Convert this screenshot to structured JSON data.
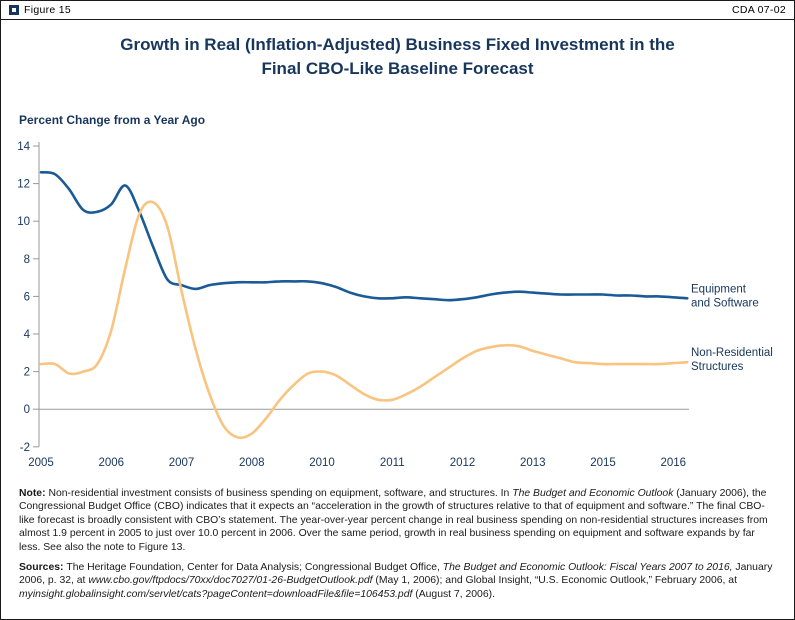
{
  "header": {
    "figure_label": "Figure 15",
    "doc_id": "CDA 07-02"
  },
  "title": {
    "line1": "Growth in Real (Inflation-Adjusted) Business Fixed Investment in the",
    "line2": "Final CBO-Like Baseline Forecast"
  },
  "colors": {
    "navy": "#17365D",
    "axis": "#999999",
    "equipment_line": "#1a5a96",
    "structures_line": "#f9c380"
  },
  "chart_data": {
    "type": "line",
    "title": "Growth in Real (Inflation-Adjusted) Business Fixed Investment in the Final CBO-Like Baseline Forecast",
    "xlabel": "",
    "ylabel": "Percent Change from a Year Ago",
    "ylim": [
      -2,
      14
    ],
    "yticks": [
      14,
      12,
      10,
      8,
      6,
      4,
      2,
      0,
      -2
    ],
    "grid": false,
    "legend_position": "right of line ends",
    "x": [
      2005.0,
      2005.25,
      2005.5,
      2005.75,
      2006.0,
      2006.25,
      2006.5,
      2006.75,
      2007.0,
      2007.25,
      2007.5,
      2007.75,
      2008.0,
      2008.25,
      2008.5,
      2008.75,
      2009.0,
      2009.25,
      2009.5,
      2009.75,
      2010.0,
      2010.25,
      2010.5,
      2010.75,
      2011.0,
      2011.25,
      2011.5,
      2011.75,
      2012.0,
      2012.25,
      2012.5,
      2012.75,
      2013.0,
      2013.25,
      2013.5,
      2013.75,
      2014.0,
      2014.25,
      2014.5,
      2014.75,
      2015.0,
      2015.25,
      2015.5,
      2015.75,
      2016.0,
      2016.25,
      2016.5
    ],
    "xtick_indices": [
      0,
      5,
      10,
      15,
      20,
      25,
      30,
      35,
      40,
      45
    ],
    "xtick_labels": [
      "2005",
      "2006",
      "2007",
      "2008",
      "2010",
      "2011",
      "2012",
      "2013",
      "2015",
      "2016"
    ],
    "series": [
      {
        "name": "Equipment and Software",
        "label_lines": [
          "Equipment",
          "and Software"
        ],
        "color": "#1a5a96",
        "values": [
          12.6,
          12.5,
          11.7,
          10.6,
          10.5,
          10.9,
          11.9,
          10.5,
          8.6,
          6.9,
          6.6,
          6.4,
          6.6,
          6.7,
          6.75,
          6.75,
          6.75,
          6.8,
          6.8,
          6.8,
          6.7,
          6.5,
          6.2,
          6.0,
          5.9,
          5.9,
          5.95,
          5.9,
          5.85,
          5.8,
          5.85,
          5.95,
          6.1,
          6.2,
          6.25,
          6.2,
          6.15,
          6.1,
          6.1,
          6.1,
          6.1,
          6.05,
          6.05,
          6.0,
          6.0,
          5.95,
          5.9
        ]
      },
      {
        "name": "Non-Residential Structures",
        "label_lines": [
          "Non-Residential",
          "Structures"
        ],
        "color": "#f9c380",
        "values": [
          2.4,
          2.4,
          1.9,
          2.0,
          2.4,
          4.2,
          7.5,
          10.4,
          11.0,
          9.7,
          6.3,
          3.2,
          0.8,
          -0.9,
          -1.5,
          -1.3,
          -0.5,
          0.5,
          1.3,
          1.9,
          2.0,
          1.8,
          1.3,
          0.8,
          0.5,
          0.5,
          0.8,
          1.2,
          1.7,
          2.2,
          2.7,
          3.1,
          3.3,
          3.4,
          3.35,
          3.1,
          2.9,
          2.7,
          2.5,
          2.45,
          2.4,
          2.4,
          2.4,
          2.4,
          2.4,
          2.45,
          2.5
        ]
      }
    ]
  },
  "note": {
    "segments": [
      {
        "style": "bold",
        "text": "Note: "
      },
      {
        "style": "normal",
        "text": "Non-residential investment consists of business spending on equipment, software, and structures. In "
      },
      {
        "style": "italic",
        "text": "The Budget and Economic Outlook"
      },
      {
        "style": "normal",
        "text": " (January 2006), the Congressional Budget Office (CBO) indicates that it expects an “acceleration in the growth of structures relative to that of equipment and software.” The final CBO-like forecast is broadly consistent with CBO’s statement. The year-over-year percent change in real business spending on non-residential structures increases from almost 1.9 percent in 2005 to just over 10.0 percent in 2006. Over the same period, growth in real business spending on equipment and software expands by far less. See also the note to Figure 13."
      }
    ]
  },
  "sources": {
    "segments": [
      {
        "style": "bold",
        "text": "Sources: "
      },
      {
        "style": "normal",
        "text": "The Heritage Foundation, Center for Data Analysis; Congressional Budget Office, "
      },
      {
        "style": "italic",
        "text": "The Budget and Economic Outlook: Fiscal Years 2007 to 2016,"
      },
      {
        "style": "normal",
        "text": " January 2006, p. 32, at "
      },
      {
        "style": "italic",
        "text": "www.cbo.gov/ftpdocs/70xx/doc7027/01-26-BudgetOutlook.pdf"
      },
      {
        "style": "normal",
        "text": " (May 1, 2006); and Global Insight, “U.S. Economic Outlook,” February 2006, at "
      },
      {
        "style": "italic",
        "text": "myinsight.globalinsight.com/servlet/cats?pageContent=downloadFile&file=106453.pdf"
      },
      {
        "style": "normal",
        "text": " (August 7, 2006)."
      }
    ]
  }
}
